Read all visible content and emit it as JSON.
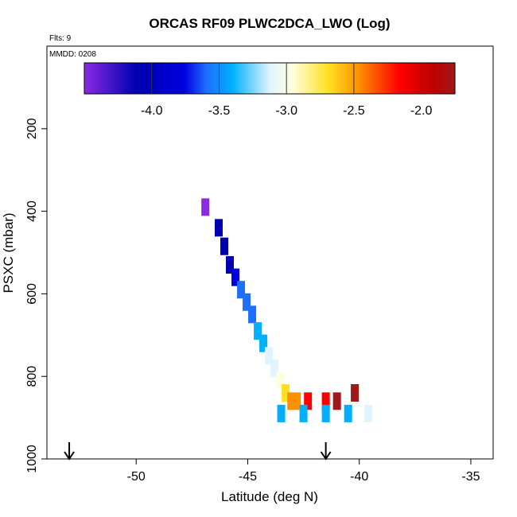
{
  "chart_data": {
    "type": "heatmap",
    "title": "ORCAS RF09 PLWC2DCA_LWO (Log)",
    "flights_note": "Flts: 9",
    "date_note": "MMDD: 0208",
    "xlabel": "Latitude (deg N)",
    "ylabel": "PSXC (mbar)",
    "xlim": [
      -54,
      -34
    ],
    "ylim": [
      1000,
      0
    ],
    "x_ticks": [
      "-50",
      "-45",
      "-40",
      "-35"
    ],
    "y_ticks": [
      "200",
      "400",
      "600",
      "800",
      "1000"
    ],
    "colorbar": {
      "range": [
        -4.5,
        -1.75
      ],
      "ticks": [
        "-4.0",
        "-3.5",
        "-3.0",
        "-2.5",
        "-2.0"
      ],
      "colors": [
        "#8a2be2",
        "#0000b0",
        "#0000e0",
        "#1e6fff",
        "#00b0ff",
        "#e0f4ff",
        "#ffffe0",
        "#ffe020",
        "#ff9000",
        "#ff0000",
        "#a01818"
      ]
    },
    "arrows_latitude": [
      -53,
      -41.5
    ],
    "cells": [
      {
        "lat": -46.9,
        "p": 390,
        "v": -4.4
      },
      {
        "lat": -46.3,
        "p": 440,
        "v": -4.2
      },
      {
        "lat": -46.05,
        "p": 485,
        "v": -4.15
      },
      {
        "lat": -45.8,
        "p": 530,
        "v": -4.1
      },
      {
        "lat": -45.55,
        "p": 560,
        "v": -3.9
      },
      {
        "lat": -45.3,
        "p": 590,
        "v": -3.75
      },
      {
        "lat": -45.05,
        "p": 620,
        "v": -3.65
      },
      {
        "lat": -44.8,
        "p": 650,
        "v": -3.55
      },
      {
        "lat": -44.55,
        "p": 690,
        "v": -3.45
      },
      {
        "lat": -44.3,
        "p": 720,
        "v": -3.35
      },
      {
        "lat": -44.05,
        "p": 750,
        "v": -3.25
      },
      {
        "lat": -43.8,
        "p": 780,
        "v": -3.1
      },
      {
        "lat": -43.55,
        "p": 810,
        "v": -2.95
      },
      {
        "lat": -43.3,
        "p": 840,
        "v": -2.7
      },
      {
        "lat": -43.05,
        "p": 860,
        "v": -2.4
      },
      {
        "lat": -42.8,
        "p": 860,
        "v": -2.2
      },
      {
        "lat": -42.3,
        "p": 860,
        "v": -2.0
      },
      {
        "lat": -41.5,
        "p": 860,
        "v": -1.9
      },
      {
        "lat": -41.0,
        "p": 860,
        "v": -1.85
      },
      {
        "lat": -40.2,
        "p": 840,
        "v": -1.8
      },
      {
        "lat": -43.5,
        "p": 890,
        "v": -3.45
      },
      {
        "lat": -42.5,
        "p": 890,
        "v": -3.4
      },
      {
        "lat": -41.5,
        "p": 890,
        "v": -3.35
      },
      {
        "lat": -40.5,
        "p": 890,
        "v": -3.3
      },
      {
        "lat": -39.6,
        "p": 890,
        "v": -3.25
      }
    ]
  }
}
